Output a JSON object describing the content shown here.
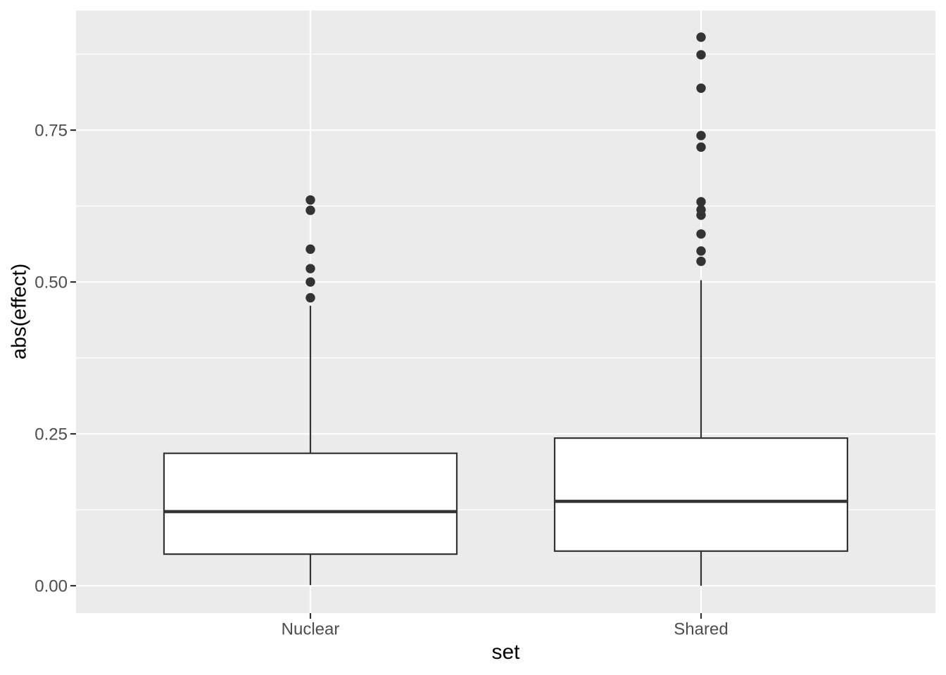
{
  "chart_data": {
    "type": "boxplot",
    "title": "",
    "xlabel": "set",
    "ylabel": "abs(effect)",
    "categories": [
      "Nuclear",
      "Shared"
    ],
    "y_ticks": [
      0.0,
      0.25,
      0.5,
      0.75
    ],
    "y_tick_labels": [
      "0.00",
      "0.25",
      "0.50",
      "0.75"
    ],
    "y_minor_ticks": [
      0.125,
      0.375,
      0.625,
      0.875
    ],
    "ylim": [
      -0.0451,
      0.9468
    ],
    "grid": "horizontal major+minor white lines, vertical major white line at each category",
    "legend_position": "none",
    "series": [
      {
        "name": "Nuclear",
        "whisker_low": 0.001,
        "q1": 0.052,
        "median": 0.122,
        "q3": 0.218,
        "whisker_high": 0.461,
        "outliers": [
          0.474,
          0.5,
          0.522,
          0.554,
          0.618,
          0.635
        ]
      },
      {
        "name": "Shared",
        "whisker_low": 0.0,
        "q1": 0.057,
        "median": 0.139,
        "q3": 0.243,
        "whisker_high": 0.503,
        "outliers": [
          0.534,
          0.551,
          0.579,
          0.61,
          0.619,
          0.632,
          0.722,
          0.741,
          0.819,
          0.874,
          0.903
        ]
      }
    ],
    "colors": {
      "panel_bg": "#EBEBEB",
      "grid": "#FFFFFF",
      "box_fill": "#FFFFFF",
      "box_stroke": "#333333",
      "outlier": "#333333",
      "tick_mark": "#333333",
      "axis_text": "#4D4D4D",
      "axis_title": "#000000"
    }
  }
}
